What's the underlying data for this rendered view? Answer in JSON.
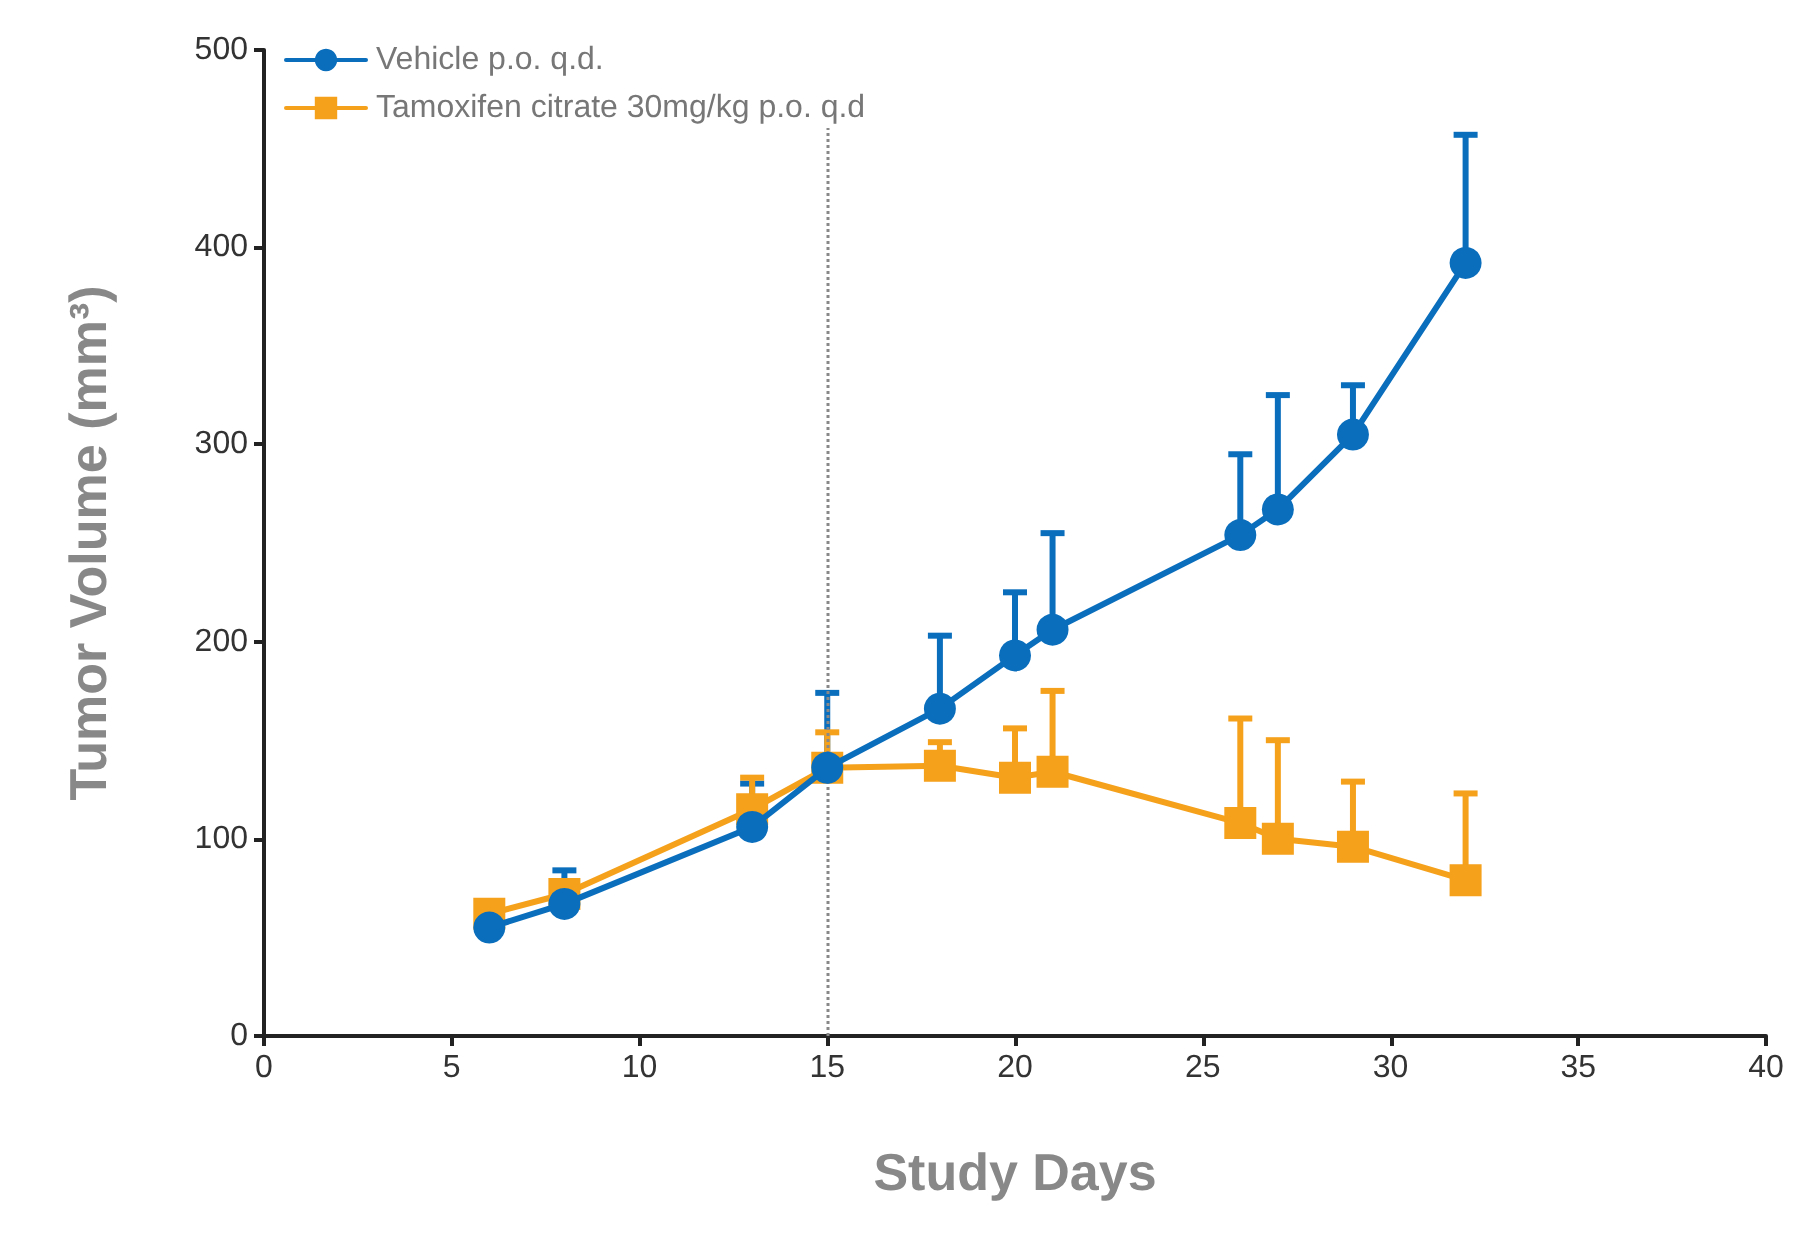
{
  "chart_data": {
    "type": "line",
    "xlabel": "Study Days",
    "ylabel": "Tumor Volume (mm³)",
    "x": [
      6,
      8,
      13,
      15,
      18,
      20,
      21,
      26,
      27,
      29,
      32
    ],
    "series": [
      {
        "name": "Vehicle p.o. q.d.",
        "color": "#0a6ebd",
        "marker": "circle",
        "values": [
          55,
          67,
          106,
          136,
          166,
          193,
          206,
          254,
          267,
          305,
          392
        ],
        "errors": [
          null,
          [
            67,
            84
          ],
          [
            106,
            128
          ],
          [
            136,
            174
          ],
          [
            166,
            203
          ],
          [
            193,
            225
          ],
          [
            206,
            255
          ],
          [
            254,
            295
          ],
          [
            267,
            325
          ],
          [
            305,
            330
          ],
          [
            392,
            457
          ]
        ]
      },
      {
        "name": "Tamoxifen citrate 30mg/kg p.o. q.d",
        "color": "#f5a11b",
        "marker": "square",
        "values": [
          62,
          72,
          115,
          136,
          137,
          131,
          134,
          108,
          100,
          96,
          79
        ],
        "errors": [
          null,
          null,
          [
            115,
            131
          ],
          [
            136,
            154
          ],
          [
            137,
            149
          ],
          [
            131,
            156
          ],
          [
            134,
            175
          ],
          [
            108,
            161
          ],
          [
            100,
            150
          ],
          [
            96,
            129
          ],
          [
            79,
            123
          ]
        ]
      }
    ],
    "xlim": [
      0,
      40
    ],
    "xticks": [
      0,
      5,
      10,
      15,
      20,
      25,
      30,
      35,
      40
    ],
    "ylim": [
      0,
      500
    ],
    "yticks": [
      0,
      100,
      200,
      300,
      400,
      500
    ],
    "ref_lines": [
      {
        "axis": "x",
        "value": 15,
        "color": "#888888",
        "line_style": "dotted"
      }
    ],
    "grid": false,
    "legend": "top left",
    "line_style": "solid"
  }
}
